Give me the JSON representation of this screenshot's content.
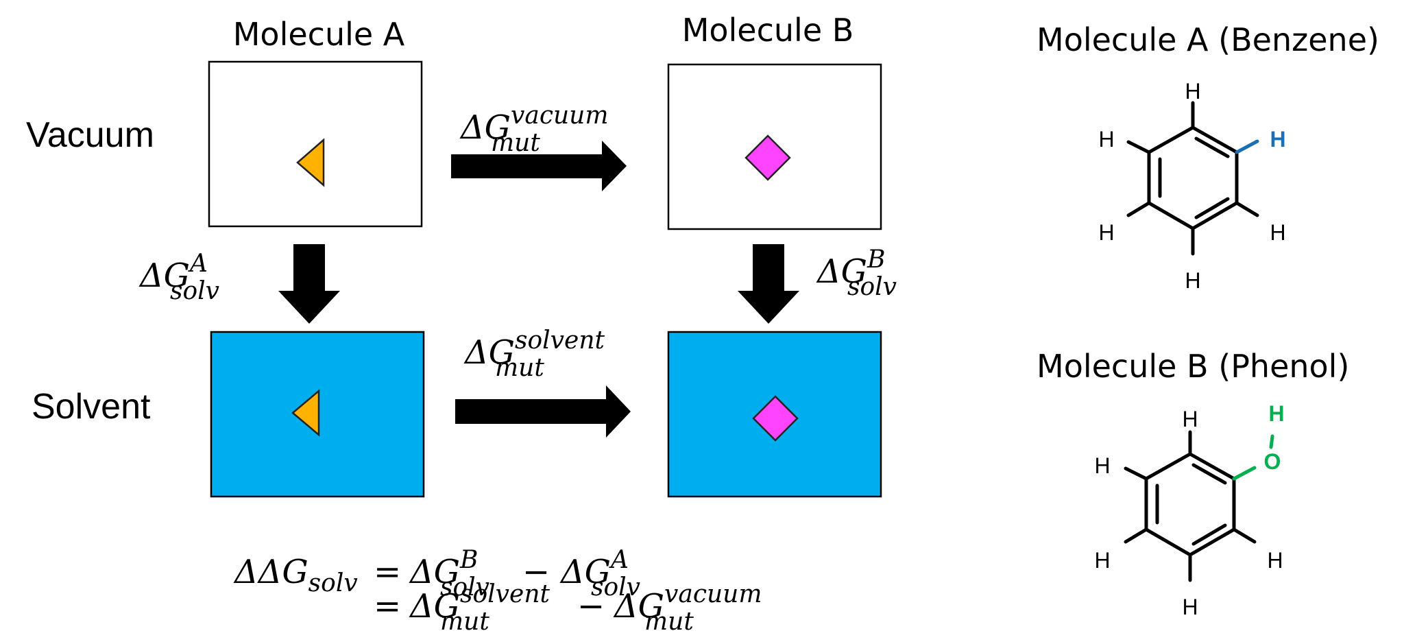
{
  "labels": {
    "molecule_a": "Molecule A",
    "molecule_b": "Molecule B",
    "vacuum": "Vacuum",
    "solvent": "Solvent"
  },
  "arrows": {
    "mut_vacuum": {
      "base": "ΔG",
      "sub": "mut",
      "sup": "vacuum"
    },
    "mut_solvent": {
      "base": "ΔG",
      "sub": "mut",
      "sup": "solvent"
    },
    "solv_a": {
      "base": "ΔG",
      "sub": "solv",
      "sup": "A"
    },
    "solv_b": {
      "base": "ΔG",
      "sub": "solv",
      "sup": "B"
    }
  },
  "equation": {
    "line1": {
      "lhs_base": "ΔΔG",
      "lhs_sub": "solv",
      "eq": "=",
      "t1_base": "ΔG",
      "t1_sub": "solv",
      "t1_sup": "B",
      "minus": "−",
      "t2_base": "ΔG",
      "t2_sub": "solv",
      "t2_sup": "A"
    },
    "line2": {
      "eq": "=",
      "t1_base": "ΔG",
      "t1_sub": "mut",
      "t1_sup": "solvent",
      "minus": "−",
      "t2_base": "ΔG",
      "t2_sub": "mut",
      "t2_sup": "vacuum"
    }
  },
  "structures": {
    "benzene": {
      "title": "Molecule A (Benzene)",
      "atoms": [
        "H",
        "H",
        "H",
        "H",
        "H",
        "H"
      ]
    },
    "phenol": {
      "title": "Molecule B (Phenol)",
      "atoms": [
        "H",
        "H",
        "H",
        "H",
        "H",
        "O",
        "H"
      ]
    }
  },
  "colors": {
    "solvent_box": "#00adee",
    "triangle": "#ffb300",
    "diamond": "#ff44ff",
    "arrow": "#000000",
    "highlight_h": "#1a6fb5",
    "highlight_oh": "#00b050"
  }
}
